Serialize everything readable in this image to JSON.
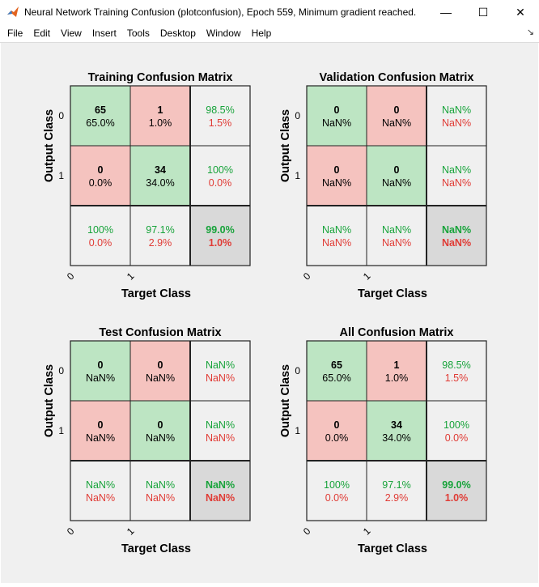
{
  "window": {
    "title": "Neural Network Training Confusion (plotconfusion), Epoch 559, Minimum gradient reached.",
    "minimize_glyph": "—",
    "maximize_glyph": "☐",
    "close_glyph": "✕",
    "app_icon": "matlab-logo-icon"
  },
  "menu": {
    "items": [
      "File",
      "Edit",
      "View",
      "Insert",
      "Tools",
      "Desktop",
      "Window",
      "Help"
    ],
    "dock_glyph": "↘"
  },
  "colors": {
    "correct": "#bde5c3",
    "incorrect": "#f5c3bf",
    "summary": "#f0f0f0",
    "total": "#d9d9d9",
    "green_text": "#17a33a",
    "red_text": "#e03b35"
  },
  "chart_data": [
    {
      "type": "table",
      "title": "Training Confusion Matrix",
      "xlabel": "Target Class",
      "ylabel": "Output Class",
      "classes": [
        "0",
        "1"
      ],
      "cells": [
        [
          {
            "count": "65",
            "pct": "65.0%"
          },
          {
            "count": "1",
            "pct": "1.0%"
          }
        ],
        [
          {
            "count": "0",
            "pct": "0.0%"
          },
          {
            "count": "34",
            "pct": "34.0%"
          }
        ]
      ],
      "row_summary": [
        {
          "good": "98.5%",
          "bad": "1.5%"
        },
        {
          "good": "100%",
          "bad": "0.0%"
        }
      ],
      "col_summary": [
        {
          "good": "100%",
          "bad": "0.0%"
        },
        {
          "good": "97.1%",
          "bad": "2.9%"
        }
      ],
      "total": {
        "good": "99.0%",
        "bad": "1.0%"
      }
    },
    {
      "type": "table",
      "title": "Validation Confusion Matrix",
      "xlabel": "Target Class",
      "ylabel": "Output Class",
      "classes": [
        "0",
        "1"
      ],
      "cells": [
        [
          {
            "count": "0",
            "pct": "NaN%"
          },
          {
            "count": "0",
            "pct": "NaN%"
          }
        ],
        [
          {
            "count": "0",
            "pct": "NaN%"
          },
          {
            "count": "0",
            "pct": "NaN%"
          }
        ]
      ],
      "row_summary": [
        {
          "good": "NaN%",
          "bad": "NaN%"
        },
        {
          "good": "NaN%",
          "bad": "NaN%"
        }
      ],
      "col_summary": [
        {
          "good": "NaN%",
          "bad": "NaN%"
        },
        {
          "good": "NaN%",
          "bad": "NaN%"
        }
      ],
      "total": {
        "good": "NaN%",
        "bad": "NaN%"
      }
    },
    {
      "type": "table",
      "title": "Test Confusion Matrix",
      "xlabel": "Target Class",
      "ylabel": "Output Class",
      "classes": [
        "0",
        "1"
      ],
      "cells": [
        [
          {
            "count": "0",
            "pct": "NaN%"
          },
          {
            "count": "0",
            "pct": "NaN%"
          }
        ],
        [
          {
            "count": "0",
            "pct": "NaN%"
          },
          {
            "count": "0",
            "pct": "NaN%"
          }
        ]
      ],
      "row_summary": [
        {
          "good": "NaN%",
          "bad": "NaN%"
        },
        {
          "good": "NaN%",
          "bad": "NaN%"
        }
      ],
      "col_summary": [
        {
          "good": "NaN%",
          "bad": "NaN%"
        },
        {
          "good": "NaN%",
          "bad": "NaN%"
        }
      ],
      "total": {
        "good": "NaN%",
        "bad": "NaN%"
      }
    },
    {
      "type": "table",
      "title": "All Confusion Matrix",
      "xlabel": "Target Class",
      "ylabel": "Output Class",
      "classes": [
        "0",
        "1"
      ],
      "cells": [
        [
          {
            "count": "65",
            "pct": "65.0%"
          },
          {
            "count": "1",
            "pct": "1.0%"
          }
        ],
        [
          {
            "count": "0",
            "pct": "0.0%"
          },
          {
            "count": "34",
            "pct": "34.0%"
          }
        ]
      ],
      "row_summary": [
        {
          "good": "98.5%",
          "bad": "1.5%"
        },
        {
          "good": "100%",
          "bad": "0.0%"
        }
      ],
      "col_summary": [
        {
          "good": "100%",
          "bad": "0.0%"
        },
        {
          "good": "97.1%",
          "bad": "2.9%"
        }
      ],
      "total": {
        "good": "99.0%",
        "bad": "1.0%"
      }
    }
  ]
}
